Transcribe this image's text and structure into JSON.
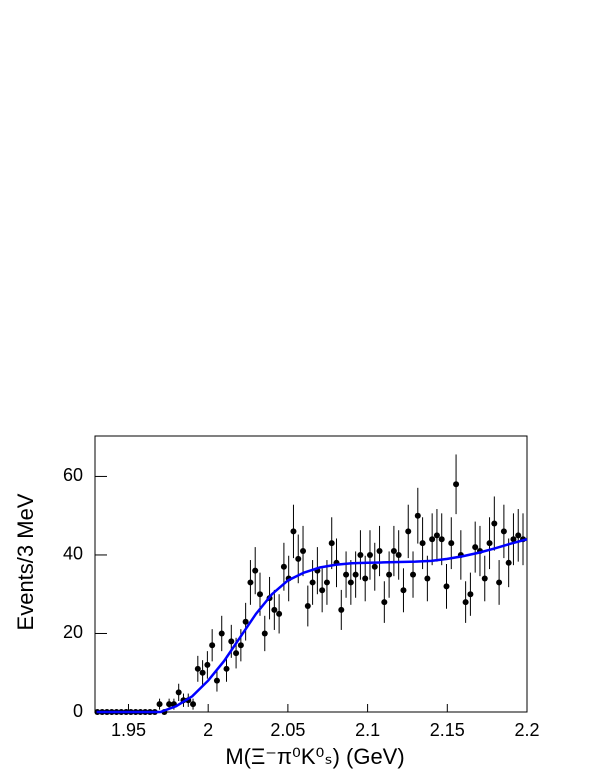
{
  "chart_data": {
    "type": "scatter",
    "x_label": "M(Ξ⁻π⁰K⁰ₛ) (GeV)",
    "y_label": "Events/3 MeV",
    "xlim": [
      1.929,
      2.2
    ],
    "ylim": [
      0,
      70.3
    ],
    "xticks": [
      1.95,
      2,
      2.05,
      2.1,
      2.15,
      2.2
    ],
    "yticks": [
      0,
      20,
      40,
      60
    ],
    "series": [
      {
        "type": "errorbar",
        "color": "#000000",
        "x": [
          1.9305,
          1.9335,
          1.9365,
          1.9395,
          1.9425,
          1.9455,
          1.9485,
          1.9515,
          1.9545,
          1.9575,
          1.9605,
          1.9635,
          1.9665,
          1.9695,
          1.9725,
          1.9755,
          1.9785,
          1.9815,
          1.9845,
          1.9875,
          1.9905,
          1.9935,
          1.9965,
          1.9995,
          2.0025,
          2.0055,
          2.0085,
          2.0115,
          2.0145,
          2.0175,
          2.0205,
          2.0235,
          2.0265,
          2.0295,
          2.0325,
          2.0355,
          2.0385,
          2.0415,
          2.0445,
          2.0475,
          2.0505,
          2.0535,
          2.0565,
          2.0595,
          2.0625,
          2.0655,
          2.0685,
          2.0715,
          2.0745,
          2.0775,
          2.0805,
          2.0835,
          2.0865,
          2.0895,
          2.0925,
          2.0955,
          2.0985,
          2.1015,
          2.1045,
          2.1075,
          2.1105,
          2.1135,
          2.1165,
          2.1195,
          2.1225,
          2.1255,
          2.1285,
          2.1315,
          2.1345,
          2.1375,
          2.1405,
          2.1435,
          2.1465,
          2.1495,
          2.1525,
          2.1555,
          2.1585,
          2.1615,
          2.1645,
          2.1675,
          2.1705,
          2.1735,
          2.1765,
          2.1795,
          2.1825,
          2.1855,
          2.1885,
          2.1915,
          2.1945,
          2.1975
        ],
        "values": [
          0,
          0,
          0,
          0,
          0,
          0,
          0,
          0,
          0,
          0,
          0,
          0,
          0,
          2,
          0,
          2,
          2,
          5,
          3,
          3,
          2,
          11,
          10,
          12,
          17,
          8,
          20,
          11,
          18,
          15,
          17,
          23,
          33,
          36,
          30,
          20,
          29,
          26,
          25,
          37,
          34,
          46,
          39,
          41,
          27,
          33,
          36,
          31,
          33,
          43,
          38,
          26,
          35,
          33,
          35,
          40,
          34,
          40,
          37,
          41,
          28,
          35,
          41,
          40,
          31,
          46,
          35,
          50,
          43,
          34,
          44,
          45,
          44,
          32,
          43,
          58,
          40,
          28,
          30,
          42,
          41,
          34,
          43,
          48,
          33,
          46,
          38,
          44,
          45,
          44
        ],
        "errors": [
          0,
          0,
          0,
          0,
          0,
          0,
          0,
          0,
          0,
          0,
          0,
          0,
          0,
          1.4,
          0,
          1.4,
          1.4,
          2.2,
          1.7,
          1.7,
          1.4,
          3.3,
          3.2,
          3.5,
          4.1,
          2.8,
          4.5,
          3.3,
          4.2,
          3.9,
          4.1,
          4.8,
          5.7,
          6,
          5.5,
          4.5,
          5.4,
          5.1,
          5,
          6.1,
          5.8,
          6.8,
          6.2,
          6.4,
          5.2,
          5.7,
          6,
          5.6,
          5.7,
          6.6,
          6.2,
          5.1,
          5.9,
          5.7,
          5.9,
          6.3,
          5.8,
          6.3,
          6.1,
          6.4,
          5.3,
          5.9,
          6.4,
          6.3,
          5.6,
          6.8,
          5.9,
          7.1,
          6.6,
          5.8,
          6.6,
          6.7,
          6.6,
          5.7,
          6.6,
          7.6,
          6.3,
          5.3,
          5.5,
          6.5,
          6.4,
          5.8,
          6.6,
          6.9,
          5.7,
          6.8,
          6.2,
          6.6,
          6.7,
          6.6
        ]
      },
      {
        "type": "line",
        "color": "#0000ff",
        "x": [
          1.93,
          1.97,
          1.98,
          1.99,
          2.0,
          2.01,
          2.02,
          2.03,
          2.04,
          2.05,
          2.06,
          2.07,
          2.08,
          2.09,
          2.1,
          2.11,
          2.12,
          2.13,
          2.14,
          2.15,
          2.16,
          2.17,
          2.18,
          2.19,
          2.2
        ],
        "values": [
          0,
          0,
          1.5,
          4,
          8,
          13,
          19,
          25,
          30,
          33.5,
          35.5,
          36.8,
          37.5,
          37.9,
          38,
          38.1,
          38.2,
          38.3,
          38.5,
          39,
          39.7,
          40.6,
          41.7,
          42.9,
          44
        ]
      }
    ]
  }
}
